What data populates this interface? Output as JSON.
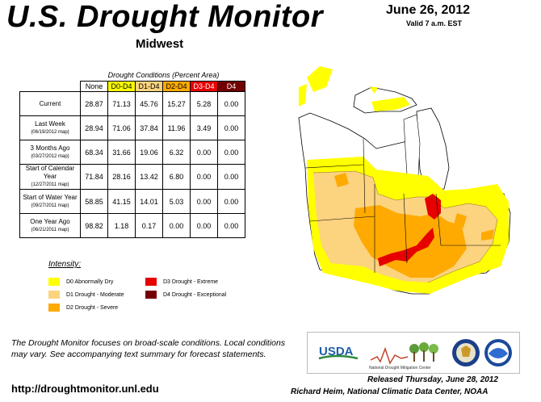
{
  "header": {
    "title": "U.S. Drought Monitor",
    "subtitle": "Midwest",
    "date": "June 26, 2012",
    "valid": "Valid 7 a.m. EST"
  },
  "table": {
    "caption": "Drought Conditions (Percent Area)",
    "columns": [
      "None",
      "D0-D4",
      "D1-D4",
      "D2-D4",
      "D3-D4",
      "D4"
    ],
    "column_colors": [
      "#ffffff",
      "#ffff00",
      "#fcd37f",
      "#ffaa00",
      "#e60000",
      "#730000"
    ],
    "rows": [
      {
        "label": "Current",
        "sub": "",
        "values": [
          "28.87",
          "71.13",
          "45.76",
          "15.27",
          "5.28",
          "0.00"
        ]
      },
      {
        "label": "Last Week",
        "sub": "(06/19/2012 map)",
        "values": [
          "28.94",
          "71.06",
          "37.84",
          "11.96",
          "3.49",
          "0.00"
        ]
      },
      {
        "label": "3 Months Ago",
        "sub": "(03/27/2012 map)",
        "values": [
          "68.34",
          "31.66",
          "19.06",
          "6.32",
          "0.00",
          "0.00"
        ]
      },
      {
        "label": "Start of Calendar Year",
        "sub": "(12/27/2011 map)",
        "values": [
          "71.84",
          "28.16",
          "13.42",
          "6.80",
          "0.00",
          "0.00"
        ]
      },
      {
        "label": "Start of Water Year",
        "sub": "(09/27/2011 map)",
        "values": [
          "58.85",
          "41.15",
          "14.01",
          "5.03",
          "0.00",
          "0.00"
        ]
      },
      {
        "label": "One Year Ago",
        "sub": "(06/21/2011 map)",
        "values": [
          "98.82",
          "1.18",
          "0.17",
          "0.00",
          "0.00",
          "0.00"
        ]
      }
    ]
  },
  "legend": {
    "title": "Intensity:",
    "items": [
      {
        "label": "D0 Abnormally Dry",
        "color": "#ffff00"
      },
      {
        "label": "D1 Drought - Moderate",
        "color": "#fcd37f"
      },
      {
        "label": "D2 Drought - Severe",
        "color": "#ffaa00"
      },
      {
        "label": "D3 Drought - Extreme",
        "color": "#e60000"
      },
      {
        "label": "D4 Drought - Exceptional",
        "color": "#730000"
      }
    ]
  },
  "note": "The Drought Monitor focuses on broad-scale conditions. Local conditions may vary. See accompanying text summary for forecast statements.",
  "url": "http://droughtmonitor.unl.edu",
  "released": "Released Thursday, June 28, 2012",
  "author": "Richard Heim, National Climatic Data Center, NOAA",
  "logos": {
    "usda": "USDA",
    "ndmc": "National Drought Mitigation Center"
  }
}
